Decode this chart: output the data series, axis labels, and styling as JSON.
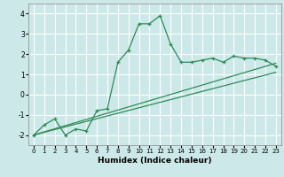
{
  "xlabel": "Humidex (Indice chaleur)",
  "bg_color": "#cce8e8",
  "grid_color": "#ffffff",
  "line_color": "#2e8b57",
  "xlim": [
    -0.5,
    23.5
  ],
  "ylim": [
    -2.5,
    4.5
  ],
  "xticks": [
    0,
    1,
    2,
    3,
    4,
    5,
    6,
    7,
    8,
    9,
    10,
    11,
    12,
    13,
    14,
    15,
    16,
    17,
    18,
    19,
    20,
    21,
    22,
    23
  ],
  "yticks": [
    -2,
    -1,
    0,
    1,
    2,
    3,
    4
  ],
  "curve1_x": [
    0,
    1,
    2,
    3,
    4,
    5,
    6,
    7,
    8,
    9,
    10,
    11,
    12,
    13,
    14,
    15,
    16,
    17,
    18,
    19,
    20,
    21,
    22,
    23
  ],
  "curve1_y": [
    -2.0,
    -1.5,
    -1.2,
    -2.0,
    -1.7,
    -1.8,
    -0.8,
    -0.7,
    1.6,
    2.2,
    3.5,
    3.5,
    3.9,
    2.5,
    1.6,
    1.6,
    1.7,
    1.8,
    1.6,
    1.9,
    1.8,
    1.8,
    1.7,
    1.4
  ],
  "curve2_x": [
    0,
    23
  ],
  "curve2_y": [
    -2.0,
    1.55
  ],
  "curve3_x": [
    0,
    23
  ],
  "curve3_y": [
    -2.0,
    1.1
  ],
  "xlabel_fontsize": 6.5,
  "tick_fontsize": 5.0,
  "ytick_fontsize": 5.5
}
